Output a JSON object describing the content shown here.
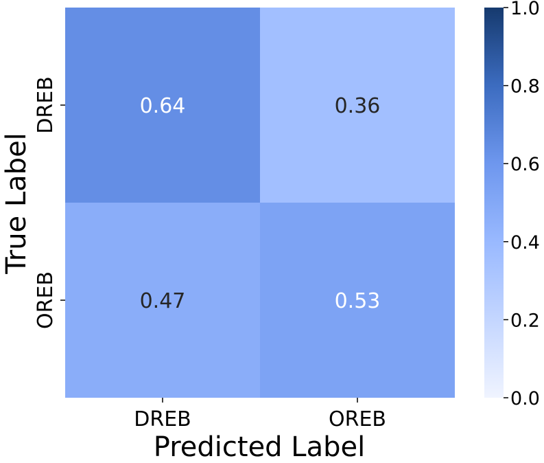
{
  "chart_data": {
    "type": "heatmap",
    "title": "",
    "xlabel": "Predicted Label",
    "ylabel": "True Label",
    "x_categories": [
      "DREB",
      "OREB"
    ],
    "y_categories": [
      "DREB",
      "OREB"
    ],
    "values": [
      [
        0.64,
        0.36
      ],
      [
        0.47,
        0.53
      ]
    ],
    "value_labels": [
      [
        "0.64",
        "0.36"
      ],
      [
        "0.47",
        "0.53"
      ]
    ],
    "label_colors": [
      [
        "#ffffff",
        "#262626"
      ],
      [
        "#262626",
        "#ffffff"
      ]
    ],
    "colorbar": {
      "range": [
        0.0,
        1.0
      ],
      "ticks": [
        "0.0",
        "0.2",
        "0.4",
        "0.6",
        "0.8",
        "1.0"
      ],
      "colors": [
        "#f0f4ff",
        "#c4d6ff",
        "#99b9ff",
        "#6e97ee",
        "#3c6cc0",
        "#163a6e"
      ]
    },
    "grid": false
  }
}
